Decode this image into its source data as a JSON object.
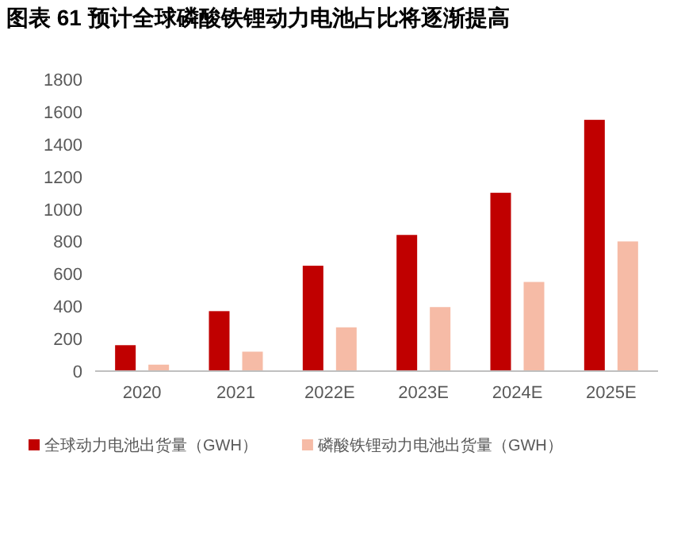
{
  "chart_data": {
    "type": "bar",
    "title": "图表 61 预计全球磷酸铁锂动力电池占比将逐渐提高",
    "categories": [
      "2020",
      "2021",
      "2022E",
      "2023E",
      "2024E",
      "2025E"
    ],
    "series": [
      {
        "name": "全球动力电池出货量（GWH）",
        "color": "#c00000",
        "values": [
          160,
          370,
          650,
          840,
          1100,
          1550
        ]
      },
      {
        "name": "磷酸铁锂动力电池出货量（GWH）",
        "color": "#f6bba6",
        "values": [
          40,
          120,
          270,
          395,
          550,
          800
        ]
      }
    ],
    "ylim": [
      0,
      1800
    ],
    "yticks": [
      0,
      200,
      400,
      600,
      800,
      1000,
      1200,
      1400,
      1600,
      1800
    ],
    "grid": false,
    "legend": "bottom"
  }
}
